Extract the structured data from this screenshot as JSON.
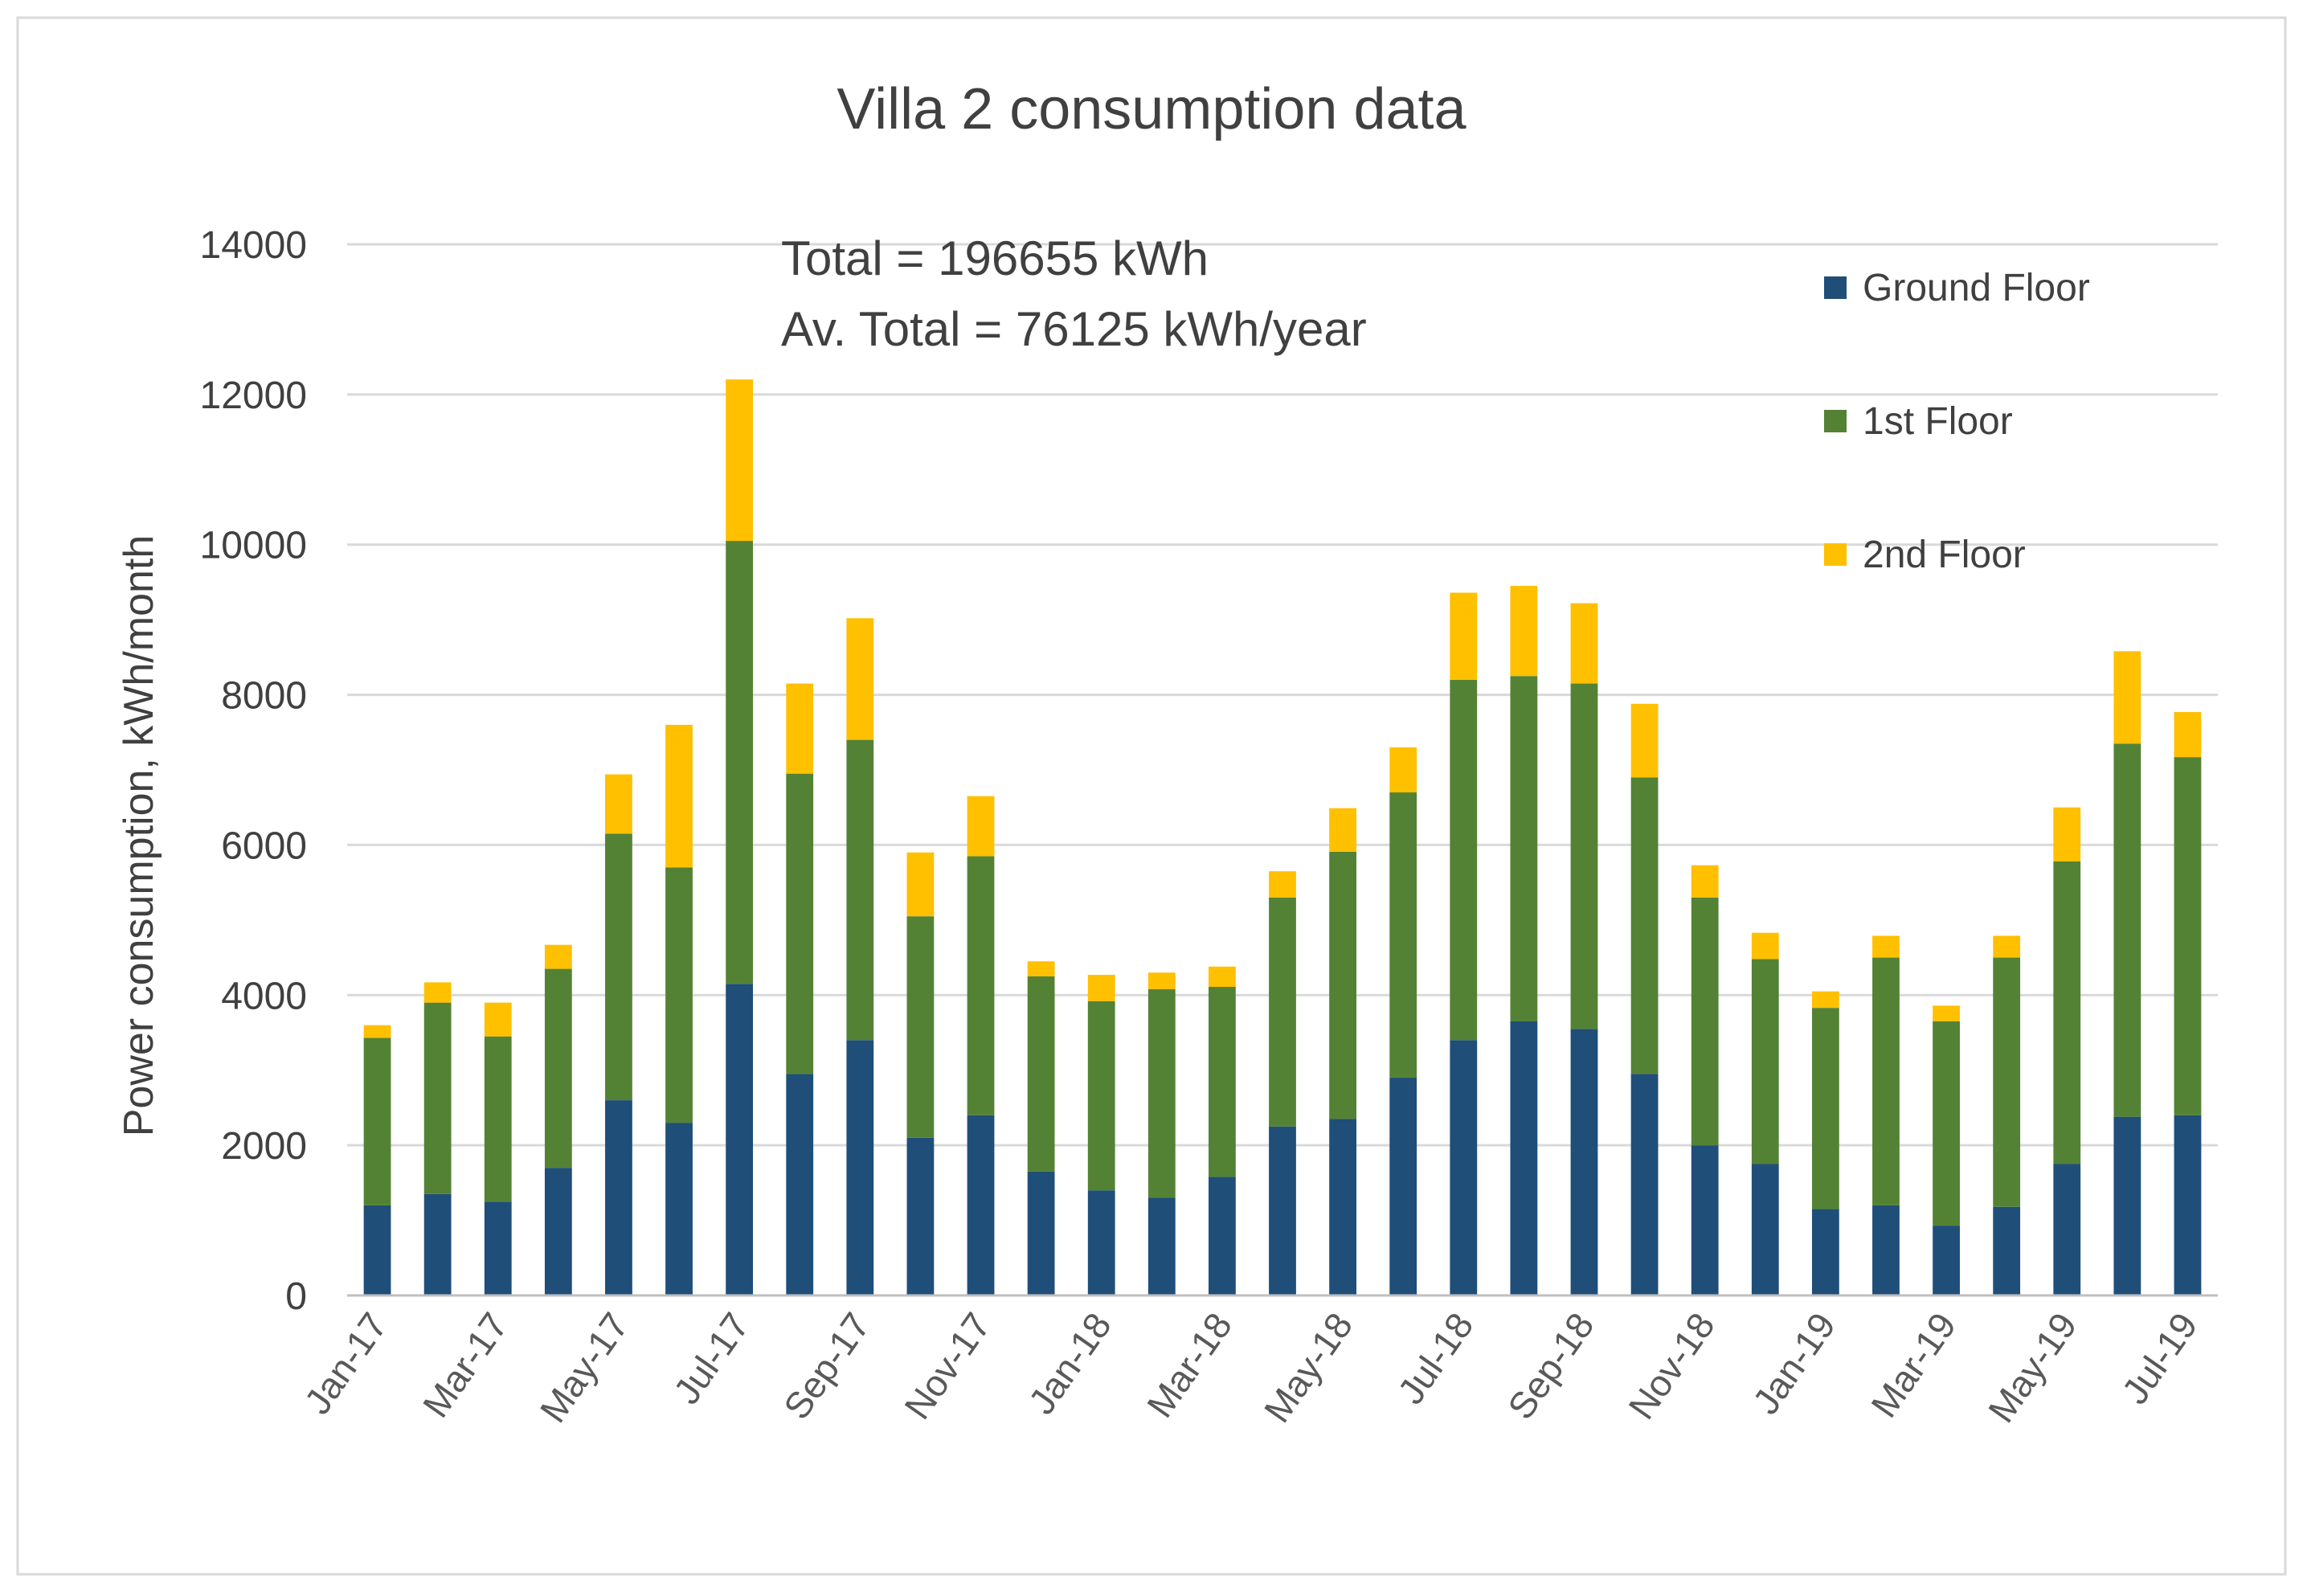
{
  "chart_data": {
    "type": "bar",
    "stacked": true,
    "title": "Villa 2 consumption data",
    "ylabel": "Power consumption, kWh/month",
    "xlabel": "",
    "ylim": [
      0,
      14000
    ],
    "yticks": [
      0,
      2000,
      4000,
      6000,
      8000,
      10000,
      12000,
      14000
    ],
    "grid": true,
    "legend_position": "top-right",
    "annotations": [
      "Total = 196655 kWh",
      "Av. Total = 76125 kWh/year"
    ],
    "categories": [
      "Jan-17",
      "Feb-17",
      "Mar-17",
      "Apr-17",
      "May-17",
      "Jun-17",
      "Jul-17",
      "Aug-17",
      "Sep-17",
      "Oct-17",
      "Nov-17",
      "Dec-17",
      "Jan-18",
      "Feb-18",
      "Mar-18",
      "Apr-18",
      "May-18",
      "Jun-18",
      "Jul-18",
      "Aug-18",
      "Sep-18",
      "Oct-18",
      "Nov-18",
      "Dec-18",
      "Jan-19",
      "Feb-19",
      "Mar-19",
      "Apr-19",
      "May-19",
      "Jun-19",
      "Jul-19"
    ],
    "visible_tick_labels": [
      "Jan-17",
      "Mar-17",
      "May-17",
      "Jul-17",
      "Sep-17",
      "Nov-17",
      "Jan-18",
      "Mar-18",
      "May-18",
      "Jul-18",
      "Sep-18",
      "Nov-18",
      "Jan-19",
      "Mar-19",
      "May-19",
      "Jul-19"
    ],
    "series": [
      {
        "name": "Ground Floor",
        "color": "#1F4E79",
        "values": [
          1200,
          1350,
          1250,
          1700,
          2600,
          2300,
          4150,
          2950,
          3400,
          2100,
          2400,
          1650,
          1400,
          1300,
          1580,
          2250,
          2350,
          2900,
          3400,
          3650,
          3550,
          2950,
          2000,
          1750,
          1150,
          1200,
          930,
          1180,
          1750,
          2380,
          2400
        ]
      },
      {
        "name": "1st Floor",
        "color": "#548235",
        "values": [
          2230,
          2550,
          2200,
          2650,
          3550,
          3400,
          5900,
          4000,
          4000,
          2950,
          3450,
          2600,
          2520,
          2780,
          2530,
          3050,
          3560,
          3800,
          4800,
          4600,
          4600,
          3950,
          3300,
          2730,
          2680,
          3300,
          2720,
          3320,
          4030,
          4970,
          4770
        ]
      },
      {
        "name": "2nd Floor",
        "color": "#FFC000",
        "values": [
          170,
          270,
          450,
          320,
          790,
          1900,
          2150,
          1200,
          1620,
          850,
          800,
          200,
          350,
          220,
          270,
          350,
          580,
          600,
          1160,
          1200,
          1070,
          980,
          430,
          350,
          220,
          290,
          210,
          290,
          720,
          1230,
          600
        ]
      }
    ]
  }
}
